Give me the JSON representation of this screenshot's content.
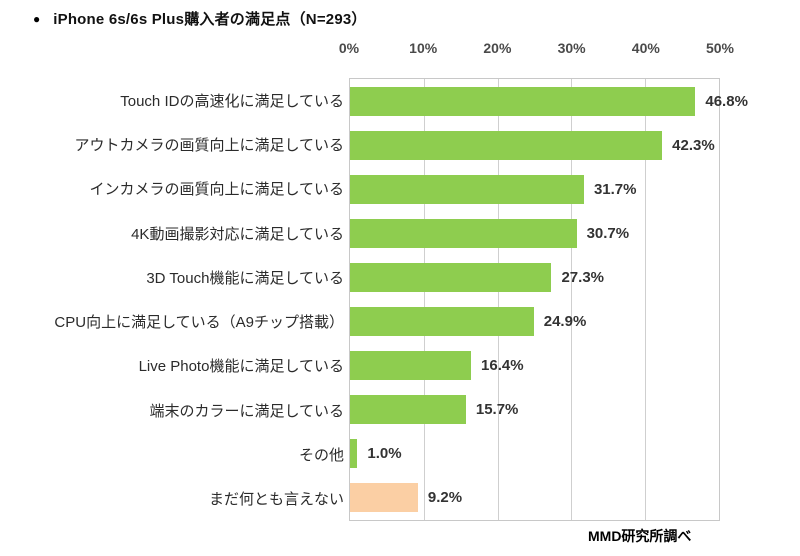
{
  "page": {
    "title": "iPhone 6s/6s Plus購入者の満足点（N=293）",
    "source_note": "MMD研究所調べ"
  },
  "icons": {
    "bullet": "●"
  },
  "colors": {
    "bar_green": "#8ecd4f",
    "bar_peach": "#fbcfa4",
    "grid": "#cfcfcf",
    "text": "#333333"
  },
  "chart_data": {
    "type": "bar",
    "orientation": "horizontal",
    "title": "iPhone 6s/6s Plus購入者の満足点（N=293）",
    "source": "MMD研究所調べ",
    "categories": [
      "Touch IDの高速化に満足している",
      "アウトカメラの画質向上に満足している",
      "インカメラの画質向上に満足している",
      "4K動画撮影対応に満足している",
      "3D Touch機能に満足している",
      "CPU向上に満足している（A9チップ搭載）",
      "Live Photo機能に満足している",
      "端末のカラーに満足している",
      "その他",
      "まだ何とも言えない"
    ],
    "values": [
      46.8,
      42.3,
      31.7,
      30.7,
      27.3,
      24.9,
      16.4,
      15.7,
      1.0,
      9.2
    ],
    "value_labels": [
      "46.8%",
      "42.3%",
      "31.7%",
      "30.7%",
      "27.3%",
      "24.9%",
      "16.4%",
      "15.7%",
      "1.0%",
      "9.2%"
    ],
    "bar_colors": [
      "#8ecd4f",
      "#8ecd4f",
      "#8ecd4f",
      "#8ecd4f",
      "#8ecd4f",
      "#8ecd4f",
      "#8ecd4f",
      "#8ecd4f",
      "#8ecd4f",
      "#fbcfa4"
    ],
    "x_ticks": [
      "0%",
      "10%",
      "20%",
      "30%",
      "40%",
      "50%"
    ],
    "xlim": [
      0,
      50
    ],
    "grid": "vertical",
    "legend": "none"
  }
}
